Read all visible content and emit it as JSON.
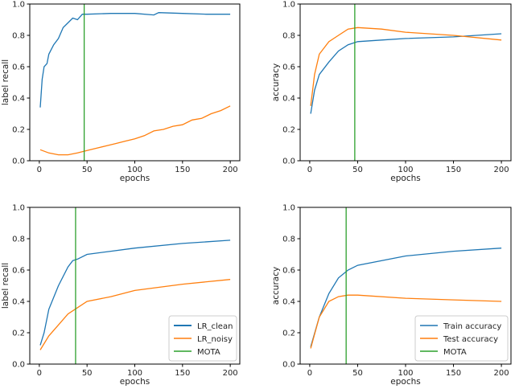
{
  "colors": {
    "blue": "#1f77b4",
    "orange": "#ff7f0e",
    "green": "#2ca02c"
  },
  "chart_data": [
    {
      "type": "line",
      "title": "",
      "xlabel": "epochs",
      "ylabel": "label recall",
      "xlim": [
        -10,
        210
      ],
      "ylim": [
        0,
        1
      ],
      "xticks": [
        "0",
        "50",
        "100",
        "150",
        "200"
      ],
      "yticks": [
        "0.0",
        "0.2",
        "0.4",
        "0.6",
        "0.8",
        "1.0"
      ],
      "vline": 47,
      "legend": null,
      "series": [
        {
          "name": "LR_clean",
          "color": "blue",
          "x": [
            1,
            3,
            5,
            8,
            10,
            15,
            20,
            25,
            30,
            35,
            40,
            45,
            50,
            75,
            100,
            120,
            125,
            150,
            175,
            200
          ],
          "y": [
            0.34,
            0.52,
            0.6,
            0.62,
            0.68,
            0.74,
            0.78,
            0.85,
            0.88,
            0.91,
            0.9,
            0.935,
            0.935,
            0.94,
            0.94,
            0.93,
            0.945,
            0.94,
            0.935,
            0.935
          ]
        },
        {
          "name": "LR_noisy",
          "color": "orange",
          "x": [
            1,
            10,
            20,
            30,
            40,
            50,
            60,
            70,
            80,
            90,
            100,
            110,
            120,
            130,
            140,
            150,
            160,
            170,
            180,
            190,
            200
          ],
          "y": [
            0.07,
            0.05,
            0.038,
            0.038,
            0.05,
            0.065,
            0.08,
            0.095,
            0.11,
            0.125,
            0.14,
            0.16,
            0.19,
            0.2,
            0.22,
            0.23,
            0.26,
            0.27,
            0.3,
            0.32,
            0.35
          ]
        }
      ]
    },
    {
      "type": "line",
      "title": "",
      "xlabel": "epochs",
      "ylabel": "accuracy",
      "xlim": [
        -10,
        210
      ],
      "ylim": [
        0,
        1
      ],
      "xticks": [
        "0",
        "50",
        "100",
        "150",
        "200"
      ],
      "yticks": [
        "0.0",
        "0.2",
        "0.4",
        "0.6",
        "0.8",
        "1.0"
      ],
      "vline": 47,
      "legend": null,
      "series": [
        {
          "name": "Train accuracy",
          "color": "blue",
          "x": [
            1,
            5,
            10,
            20,
            30,
            40,
            50,
            75,
            100,
            150,
            200
          ],
          "y": [
            0.3,
            0.45,
            0.55,
            0.63,
            0.7,
            0.74,
            0.76,
            0.77,
            0.78,
            0.79,
            0.81
          ]
        },
        {
          "name": "Test accuracy",
          "color": "orange",
          "x": [
            1,
            5,
            10,
            20,
            30,
            40,
            50,
            75,
            100,
            150,
            200
          ],
          "y": [
            0.35,
            0.55,
            0.68,
            0.76,
            0.8,
            0.84,
            0.85,
            0.84,
            0.82,
            0.8,
            0.77
          ]
        }
      ]
    },
    {
      "type": "line",
      "title": "",
      "xlabel": "epochs",
      "ylabel": "label recall",
      "xlim": [
        -10,
        210
      ],
      "ylim": [
        0,
        1
      ],
      "xticks": [
        "0",
        "50",
        "100",
        "150",
        "200"
      ],
      "yticks": [
        "0.0",
        "0.2",
        "0.4",
        "0.6",
        "0.8",
        "1.0"
      ],
      "vline": 38,
      "legend": "lower-right",
      "legend_entries": [
        "LR_clean",
        "LR_noisy",
        "MOTA"
      ],
      "series": [
        {
          "name": "LR_clean",
          "color": "blue",
          "x": [
            1,
            5,
            10,
            20,
            30,
            35,
            40,
            50,
            75,
            100,
            150,
            200
          ],
          "y": [
            0.12,
            0.2,
            0.35,
            0.5,
            0.62,
            0.66,
            0.67,
            0.7,
            0.72,
            0.74,
            0.77,
            0.79
          ]
        },
        {
          "name": "LR_noisy",
          "color": "orange",
          "x": [
            1,
            10,
            20,
            30,
            40,
            50,
            75,
            100,
            150,
            200
          ],
          "y": [
            0.09,
            0.18,
            0.25,
            0.32,
            0.36,
            0.4,
            0.43,
            0.47,
            0.51,
            0.54
          ]
        }
      ]
    },
    {
      "type": "line",
      "title": "",
      "xlabel": "epochs",
      "ylabel": "accuracy",
      "xlim": [
        -10,
        210
      ],
      "ylim": [
        0,
        1
      ],
      "xticks": [
        "0",
        "50",
        "100",
        "150",
        "200"
      ],
      "yticks": [
        "0.0",
        "0.2",
        "0.4",
        "0.6",
        "0.8",
        "1.0"
      ],
      "vline": 38,
      "legend": "lower-right",
      "legend_entries": [
        "Train accuracy",
        "Test accuracy",
        "MOTA"
      ],
      "series": [
        {
          "name": "Train accuracy",
          "color": "blue",
          "x": [
            1,
            10,
            20,
            30,
            40,
            50,
            100,
            150,
            200
          ],
          "y": [
            0.11,
            0.3,
            0.45,
            0.55,
            0.6,
            0.63,
            0.69,
            0.72,
            0.74
          ]
        },
        {
          "name": "Test accuracy",
          "color": "orange",
          "x": [
            1,
            10,
            20,
            30,
            40,
            50,
            100,
            150,
            200
          ],
          "y": [
            0.1,
            0.3,
            0.4,
            0.43,
            0.44,
            0.44,
            0.42,
            0.41,
            0.4
          ]
        }
      ]
    }
  ]
}
